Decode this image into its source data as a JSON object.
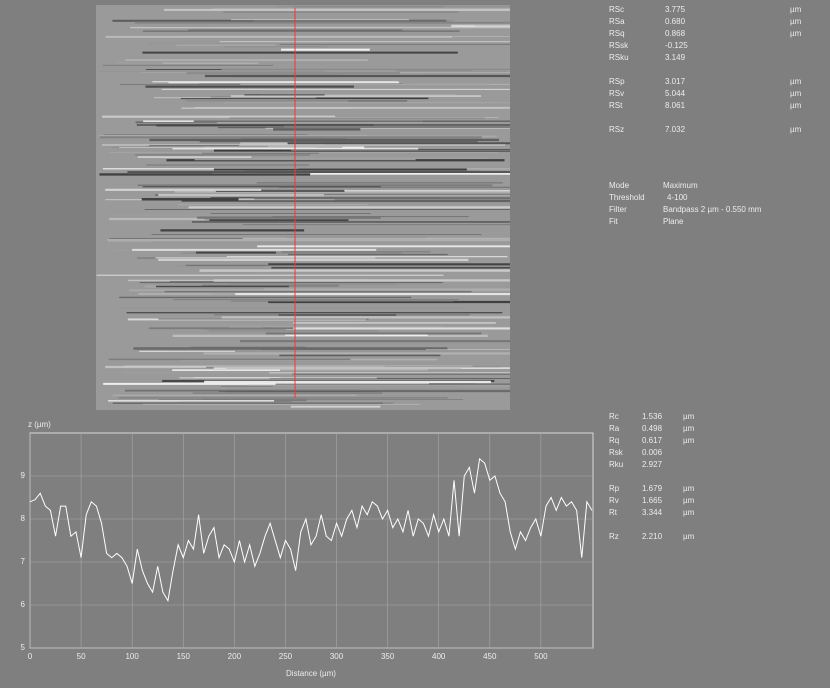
{
  "surface_parameters": [
    [
      {
        "name": "RSc",
        "value": "3.775",
        "unit": "µm"
      },
      {
        "name": "RSa",
        "value": "0.680",
        "unit": "µm"
      },
      {
        "name": "RSq",
        "value": "0.868",
        "unit": "µm"
      },
      {
        "name": "RSsk",
        "value": "-0.125"
      },
      {
        "name": "RSku",
        "value": "3.149"
      }
    ],
    [
      {
        "name": "RSp",
        "value": "3.017",
        "unit": "µm"
      },
      {
        "name": "RSv",
        "value": "5.044",
        "unit": "µm"
      },
      {
        "name": "RSt",
        "value": "8.061",
        "unit": "µm"
      }
    ],
    [
      {
        "name": "RSz",
        "value": "7.032",
        "unit": "µm"
      }
    ]
  ],
  "settings": [
    {
      "label": "Mode",
      "value": "Maximum"
    },
    {
      "label": "Threshold",
      "value": "4-100"
    },
    {
      "label": "Filter",
      "value": "Bandpass 2 µm - 0.550 mm"
    },
    {
      "label": "Fit",
      "value": "Plane"
    }
  ],
  "profile_parameters": [
    [
      {
        "name": "Rc",
        "value": "1.536",
        "unit": "µm"
      },
      {
        "name": "Ra",
        "value": "0.498",
        "unit": "µm"
      },
      {
        "name": "Rq",
        "value": "0.617",
        "unit": "µm"
      },
      {
        "name": "Rsk",
        "value": "0.006"
      },
      {
        "name": "Rku",
        "value": "2.927"
      }
    ],
    [
      {
        "name": "Rp",
        "value": "1.679",
        "unit": "µm"
      },
      {
        "name": "Rv",
        "value": "1.665",
        "unit": "µm"
      },
      {
        "name": "Rt",
        "value": "3.344",
        "unit": "µm"
      }
    ],
    [
      {
        "name": "Rz",
        "value": "2.210",
        "unit": "µm"
      }
    ]
  ],
  "chart_data": {
    "type": "line",
    "y_label": "z (µm)",
    "x_label": "Distance (µm)",
    "x": [
      0,
      5,
      10,
      15,
      20,
      25,
      30,
      35,
      40,
      45,
      50,
      55,
      60,
      65,
      70,
      75,
      80,
      85,
      90,
      95,
      100,
      105,
      110,
      115,
      120,
      125,
      130,
      135,
      140,
      145,
      150,
      155,
      160,
      165,
      170,
      175,
      180,
      185,
      190,
      195,
      200,
      205,
      210,
      215,
      220,
      225,
      230,
      235,
      240,
      245,
      250,
      255,
      260,
      265,
      270,
      275,
      280,
      285,
      290,
      295,
      300,
      305,
      310,
      315,
      320,
      325,
      330,
      335,
      340,
      345,
      350,
      355,
      360,
      365,
      370,
      375,
      380,
      385,
      390,
      395,
      400,
      405,
      410,
      415,
      420,
      425,
      430,
      435,
      440,
      445,
      450,
      455,
      460,
      465,
      470,
      475,
      480,
      485,
      490,
      495,
      500,
      505,
      510,
      515,
      520,
      525,
      530,
      535,
      540,
      545,
      550
    ],
    "series": [
      {
        "color": "#ffffff",
        "values": [
          8.4,
          8.45,
          8.6,
          8.3,
          8.2,
          7.6,
          8.3,
          8.3,
          7.6,
          7.7,
          7.1,
          8.1,
          8.4,
          8.3,
          7.9,
          7.2,
          7.1,
          7.2,
          7.1,
          6.9,
          6.5,
          7.3,
          6.8,
          6.5,
          6.3,
          6.9,
          6.3,
          6.1,
          6.8,
          7.4,
          7.1,
          7.5,
          7.3,
          8.1,
          7.2,
          7.6,
          7.8,
          7.1,
          7.4,
          7.3,
          7.0,
          7.5,
          7.0,
          7.4,
          6.9,
          7.2,
          7.6,
          7.9,
          7.5,
          7.1,
          7.5,
          7.3,
          6.8,
          7.7,
          8.0,
          7.4,
          7.6,
          8.1,
          7.6,
          7.5,
          7.9,
          7.6,
          8.0,
          8.2,
          7.8,
          8.3,
          8.1,
          8.4,
          8.3,
          8.0,
          8.2,
          7.8,
          8.0,
          7.7,
          8.2,
          7.6,
          8.0,
          7.9,
          7.6,
          8.1,
          7.7,
          8.0,
          7.6,
          8.9,
          7.6,
          9.0,
          9.2,
          8.6,
          9.4,
          9.3,
          8.9,
          9.0,
          8.6,
          8.4,
          7.7,
          7.3,
          7.7,
          7.5,
          7.8,
          8.0,
          7.6,
          8.3,
          8.5,
          8.2,
          8.5,
          8.3,
          8.4,
          8.2,
          7.1,
          8.4,
          8.2
        ]
      }
    ],
    "xlim": [
      0,
      551
    ],
    "ylim": [
      5,
      10
    ],
    "xticks": [
      0,
      50,
      100,
      150,
      200,
      250,
      300,
      350,
      400,
      450,
      500
    ],
    "yticks": [
      5,
      6,
      7,
      8,
      9
    ],
    "grid": true
  }
}
